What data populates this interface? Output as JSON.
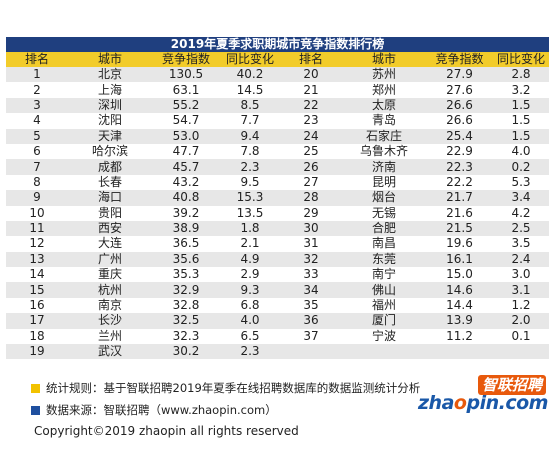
{
  "chart_data": {
    "type": "table",
    "title": "2019年夏季求职期城市竞争指数排行榜",
    "columns": [
      "排名",
      "城市",
      "竞争指数",
      "同比变化",
      "排名",
      "城市",
      "竞争指数",
      "同比变化"
    ],
    "left": [
      {
        "rank": "1",
        "city": "北京",
        "index": "130.5",
        "change": "40.2"
      },
      {
        "rank": "2",
        "city": "上海",
        "index": "63.1",
        "change": "14.5"
      },
      {
        "rank": "3",
        "city": "深圳",
        "index": "55.2",
        "change": "8.5"
      },
      {
        "rank": "4",
        "city": "沈阳",
        "index": "54.7",
        "change": "7.7"
      },
      {
        "rank": "5",
        "city": "天津",
        "index": "53.0",
        "change": "9.4"
      },
      {
        "rank": "6",
        "city": "哈尔滨",
        "index": "47.7",
        "change": "7.8"
      },
      {
        "rank": "7",
        "city": "成都",
        "index": "45.7",
        "change": "2.3"
      },
      {
        "rank": "8",
        "city": "长春",
        "index": "43.2",
        "change": "9.5"
      },
      {
        "rank": "9",
        "city": "海口",
        "index": "40.8",
        "change": "15.3"
      },
      {
        "rank": "10",
        "city": "贵阳",
        "index": "39.2",
        "change": "13.5"
      },
      {
        "rank": "11",
        "city": "西安",
        "index": "38.9",
        "change": "1.8"
      },
      {
        "rank": "12",
        "city": "大连",
        "index": "36.5",
        "change": "2.1"
      },
      {
        "rank": "13",
        "city": "广州",
        "index": "35.6",
        "change": "4.9"
      },
      {
        "rank": "14",
        "city": "重庆",
        "index": "35.3",
        "change": "2.9"
      },
      {
        "rank": "15",
        "city": "杭州",
        "index": "32.9",
        "change": "9.3"
      },
      {
        "rank": "16",
        "city": "南京",
        "index": "32.8",
        "change": "6.8"
      },
      {
        "rank": "17",
        "city": "长沙",
        "index": "32.5",
        "change": "4.0"
      },
      {
        "rank": "18",
        "city": "兰州",
        "index": "32.3",
        "change": "6.5"
      },
      {
        "rank": "19",
        "city": "武汉",
        "index": "30.2",
        "change": "2.3"
      }
    ],
    "right": [
      {
        "rank": "20",
        "city": "苏州",
        "index": "27.9",
        "change": "2.8"
      },
      {
        "rank": "21",
        "city": "郑州",
        "index": "27.6",
        "change": "3.2"
      },
      {
        "rank": "22",
        "city": "太原",
        "index": "26.6",
        "change": "1.5"
      },
      {
        "rank": "23",
        "city": "青岛",
        "index": "26.6",
        "change": "1.5"
      },
      {
        "rank": "24",
        "city": "石家庄",
        "index": "25.4",
        "change": "1.5"
      },
      {
        "rank": "25",
        "city": "乌鲁木齐",
        "index": "22.9",
        "change": "4.0"
      },
      {
        "rank": "26",
        "city": "济南",
        "index": "22.3",
        "change": "0.2"
      },
      {
        "rank": "27",
        "city": "昆明",
        "index": "22.2",
        "change": "5.3"
      },
      {
        "rank": "28",
        "city": "烟台",
        "index": "21.7",
        "change": "3.4"
      },
      {
        "rank": "29",
        "city": "无锡",
        "index": "21.6",
        "change": "4.2"
      },
      {
        "rank": "30",
        "city": "合肥",
        "index": "21.5",
        "change": "2.5"
      },
      {
        "rank": "31",
        "city": "南昌",
        "index": "19.6",
        "change": "3.5"
      },
      {
        "rank": "32",
        "city": "东莞",
        "index": "16.1",
        "change": "2.4"
      },
      {
        "rank": "33",
        "city": "南宁",
        "index": "15.0",
        "change": "3.0"
      },
      {
        "rank": "34",
        "city": "佛山",
        "index": "14.6",
        "change": "3.1"
      },
      {
        "rank": "35",
        "city": "福州",
        "index": "14.4",
        "change": "1.2"
      },
      {
        "rank": "36",
        "city": "厦门",
        "index": "13.9",
        "change": "2.0"
      },
      {
        "rank": "37",
        "city": "宁波",
        "index": "11.2",
        "change": "0.1"
      }
    ],
    "colors": {
      "title_bg": "#1f3f7f",
      "header_bg": "#f2cc2a",
      "stripe": "#e7e7e7"
    }
  },
  "notes": {
    "rule": "统计规则：基于智联招聘2019年夏季在线招聘数据库的数据监测统计分析",
    "source": "数据来源：智联招聘（www.zhaopin.com）",
    "rule_color": "#f2c200",
    "source_color": "#1f4f9f"
  },
  "logo": {
    "cn": "智联招聘",
    "en_prefix": "zha",
    "en_o": "o",
    "en_suffix": "pin.com"
  },
  "copyright": "Copyright©2019 zhaopin all rights reserved"
}
